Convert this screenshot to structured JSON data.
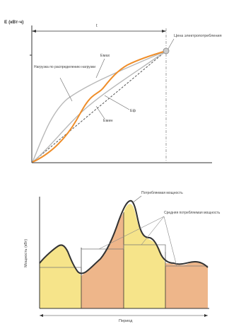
{
  "top_chart": {
    "y_axis_label": "E (кВт·ч)",
    "period_label": "t",
    "point_label": "Цена электропотребления",
    "average_label": "Нагрузка по распределению нагрузки",
    "curve_max_label": "Eмах",
    "curve_actual_label": "Eф",
    "curve_min_label": "Eмин"
  },
  "bottom_chart": {
    "y_axis_label": "Мощность (кВт)",
    "x_axis_label": "Период",
    "peak_label": "Потребляемая мощность",
    "avg_label": "Средняя потребляемая мощность"
  },
  "colors": {
    "actual_curve": "#ef8e2a",
    "envelope": "#b8b8b8",
    "area_yellow": "#f6e48a",
    "area_orange": "#eeb68a",
    "outline": "#333333"
  }
}
